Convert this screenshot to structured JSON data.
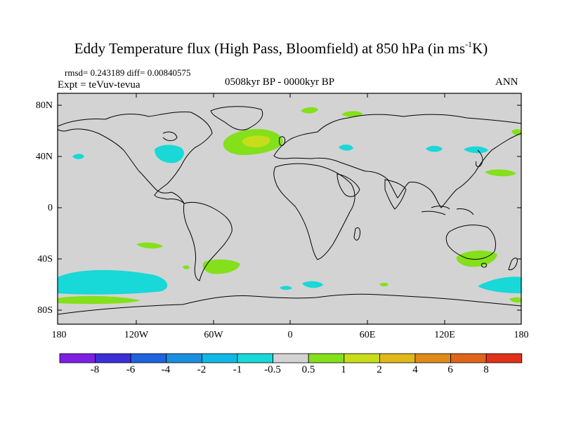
{
  "title": {
    "main": "Eddy Temperature flux (High Pass, Bloomfield) at 850 hPa (in ms",
    "sup": "-1",
    "end": "K)"
  },
  "subtitle": {
    "stats": "rmsd= 0.243189 diff= 0.00840575",
    "experiment": "Expt = teVuv-tevua",
    "period": "0508kyr BP - 0000kyr BP",
    "season": "ANN"
  },
  "axes": {
    "lat_labels": [
      "80N",
      "40N",
      "0",
      "40S",
      "80S"
    ],
    "lon_labels": [
      "180",
      "120W",
      "60W",
      "0",
      "60E",
      "120E",
      "180"
    ]
  },
  "colorbar": {
    "labels": [
      "-8",
      "-6",
      "-4",
      "-2",
      "-1",
      "-0.5",
      "0.5",
      "1",
      "2",
      "4",
      "6",
      "8"
    ],
    "colors": [
      "#7f1fe6",
      "#3a2fd8",
      "#1f63dd",
      "#1a8fe0",
      "#10b8e6",
      "#18d8d8",
      "#d3d3d3",
      "#84e01a",
      "#c8dd1a",
      "#e0b81a",
      "#e08a1a",
      "#e0641a",
      "#e0321a"
    ]
  },
  "map": {
    "ocean_color": "#d3d3d3",
    "coast_color": "#000000"
  }
}
